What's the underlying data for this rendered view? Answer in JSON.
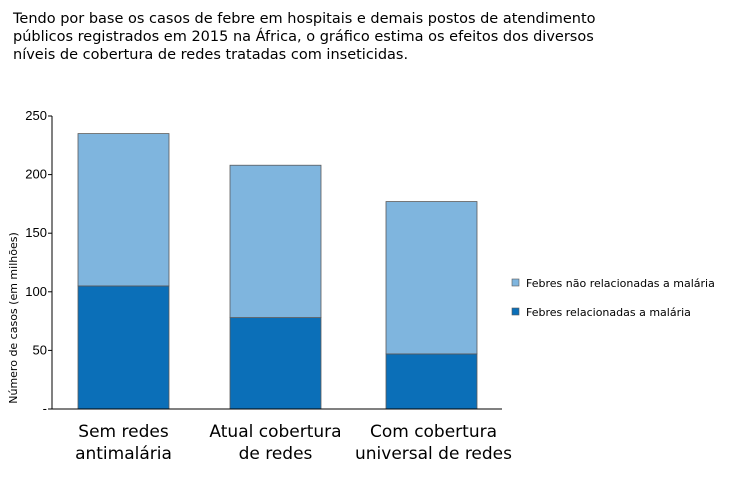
{
  "intro_text": "Tendo por base os casos de febre em hospitais e demais postos de atendimento públicos registrados em 2015 na África, o gráfico estima os efeitos dos diversos níveis de cobertura de redes tratadas com inseticidas.",
  "chart_data": {
    "type": "bar",
    "stacked": true,
    "title": "",
    "xlabel": "",
    "ylabel": "Número de casos (em milhões)",
    "ylim": [
      0,
      250
    ],
    "yticks": [
      0,
      50,
      100,
      150,
      200,
      250
    ],
    "ytick_labels": [
      "-",
      "50",
      "100",
      "150",
      "200",
      "250"
    ],
    "categories": [
      [
        "Sem redes",
        "antimalária"
      ],
      [
        "Atual cobertura",
        "de redes"
      ],
      [
        "Com cobertura",
        "universal de redes"
      ]
    ],
    "series": [
      {
        "name": "Febres relacionadas a malária",
        "values": [
          105,
          78,
          47
        ],
        "color": "#0b6fb8"
      },
      {
        "name": "Febres não relacionadas a malária",
        "values": [
          130,
          130,
          130
        ],
        "color": "#7fb5de"
      }
    ],
    "legend": {
      "placement": "right",
      "order": [
        "Febres não relacionadas a malária",
        "Febres relacionadas a malária"
      ]
    },
    "grid": false
  }
}
